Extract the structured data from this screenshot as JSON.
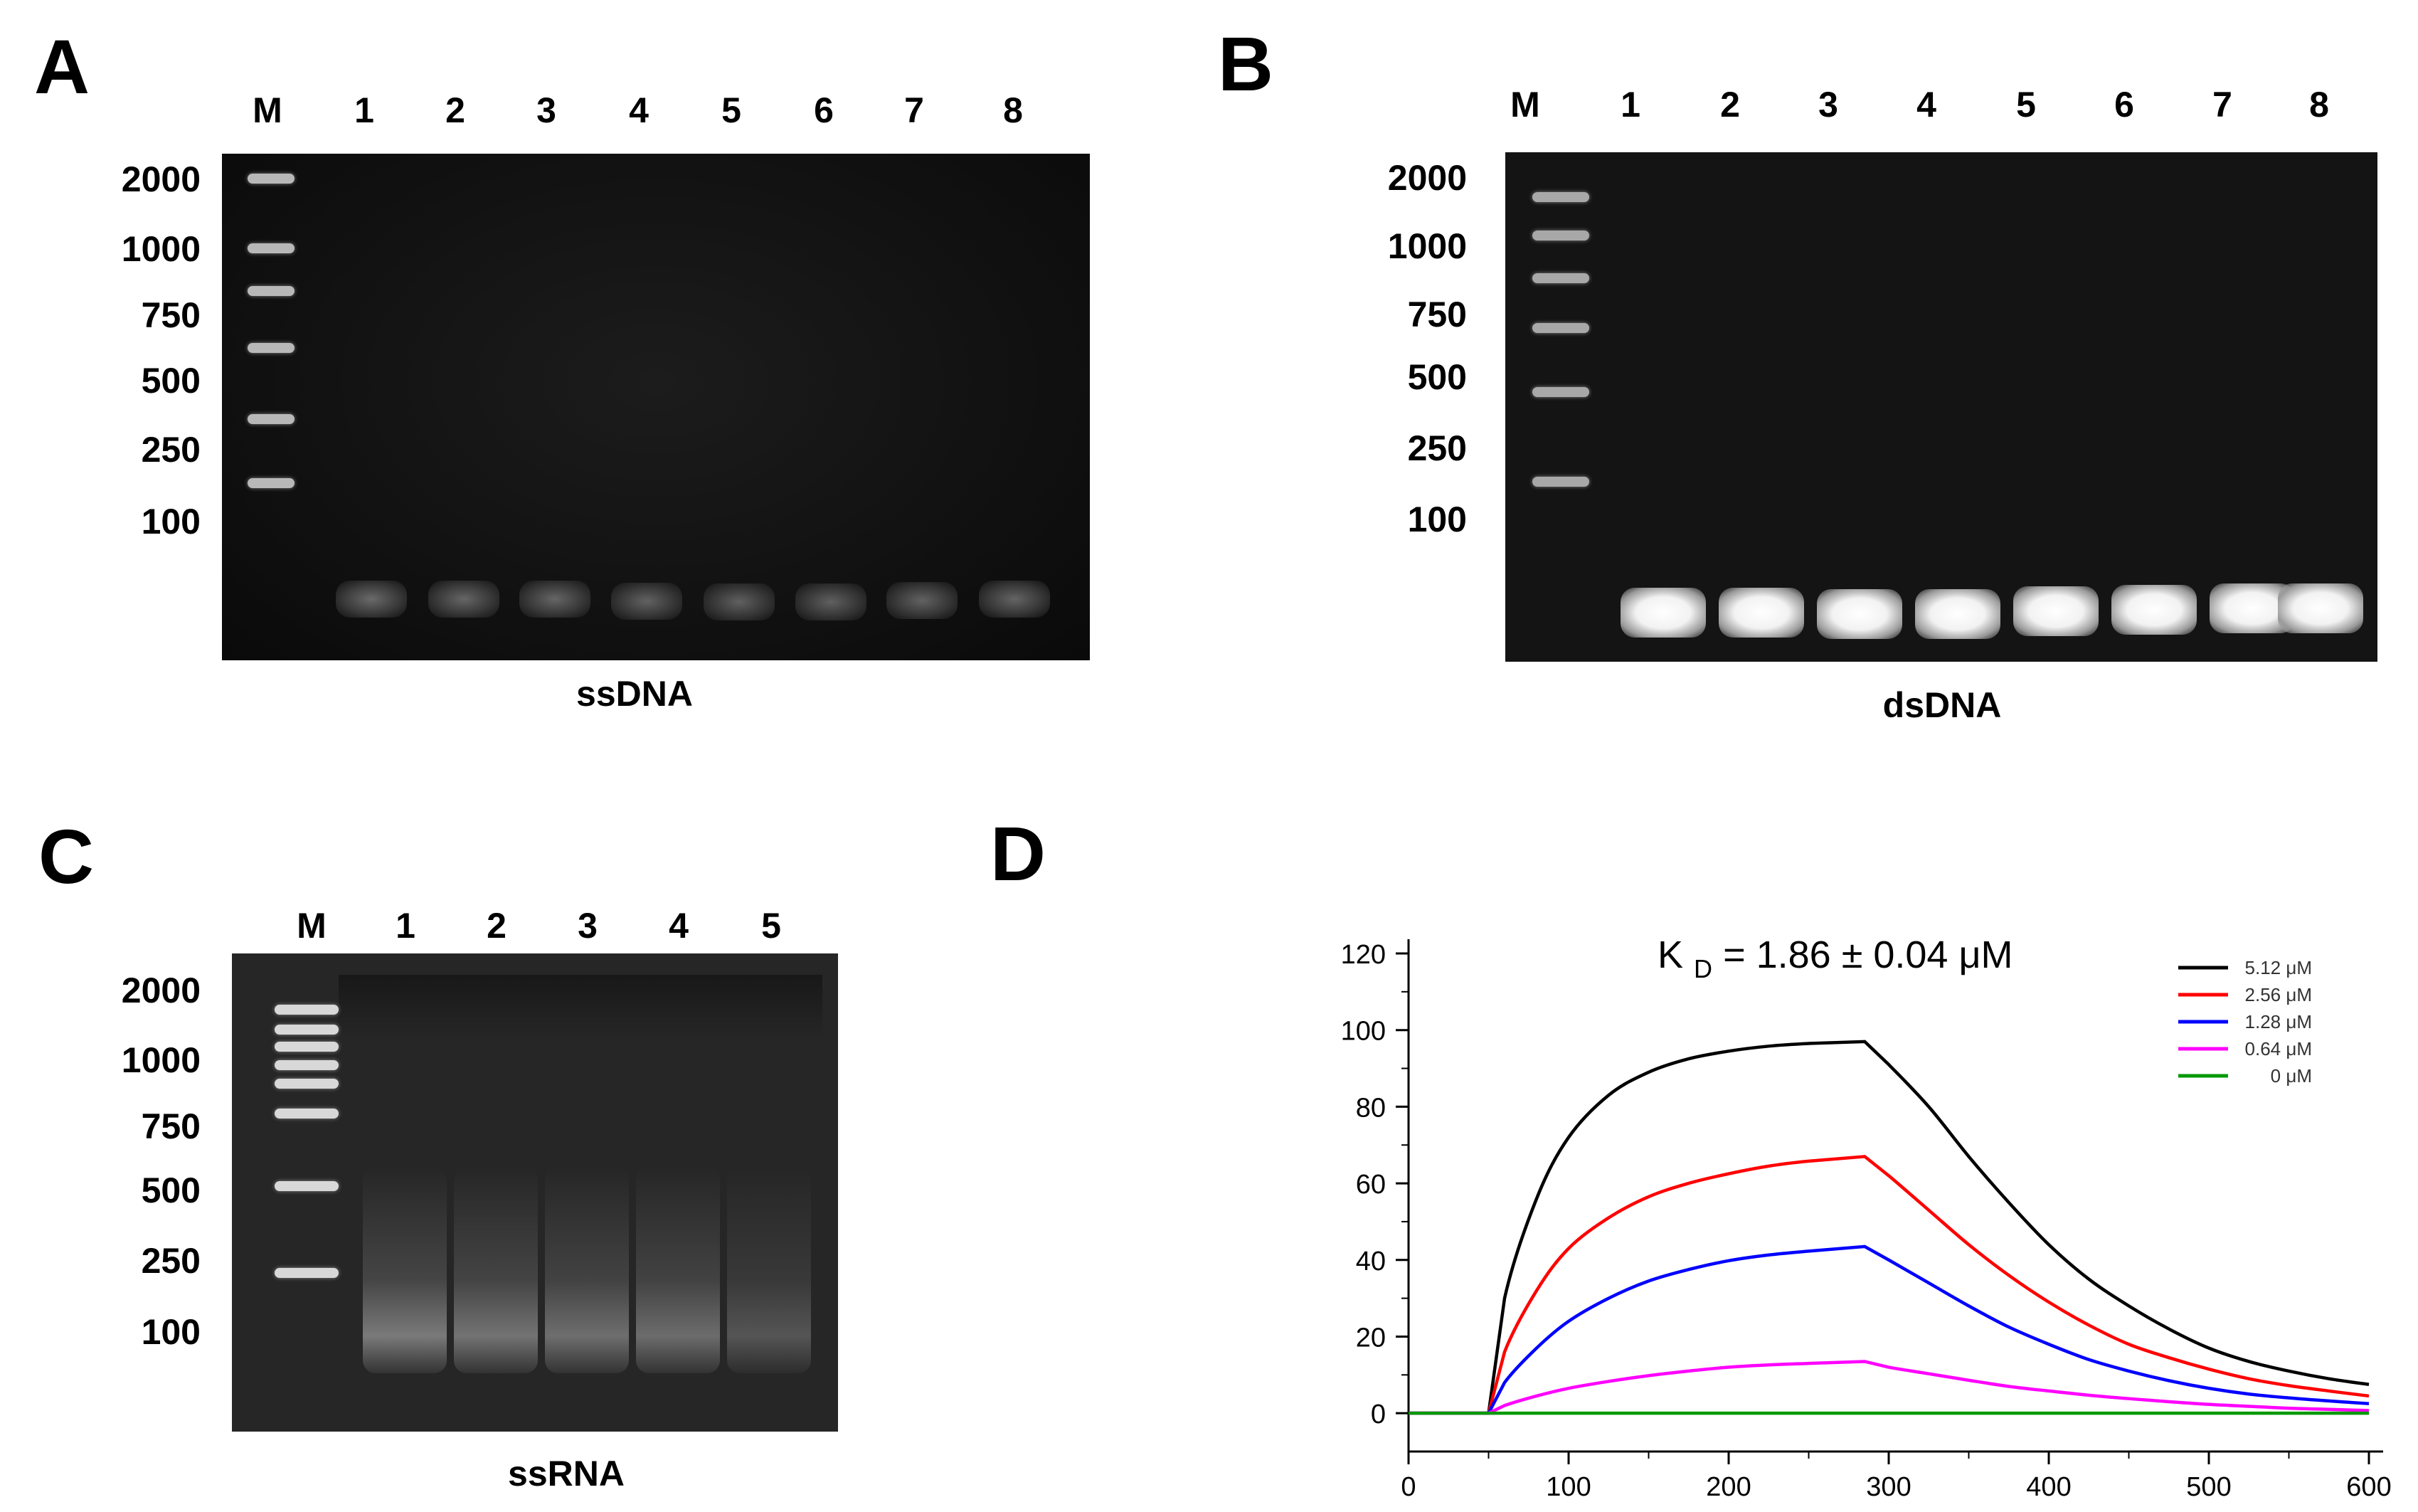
{
  "panels": {
    "A": {
      "letter": "A",
      "caption": "ssDNA",
      "lanes": [
        "M",
        "1",
        "2",
        "3",
        "4",
        "5",
        "6",
        "7",
        "8"
      ],
      "ladder": [
        "2000",
        "1000",
        "750",
        "500",
        "250",
        "100"
      ]
    },
    "B": {
      "letter": "B",
      "caption": "dsDNA",
      "lanes": [
        "M",
        "1",
        "2",
        "3",
        "4",
        "5",
        "6",
        "7",
        "8"
      ],
      "ladder": [
        "2000",
        "1000",
        "750",
        "500",
        "250",
        "100"
      ]
    },
    "C": {
      "letter": "C",
      "caption": "ssRNA",
      "lanes": [
        "M",
        "1",
        "2",
        "3",
        "4",
        "5"
      ],
      "ladder": [
        "2000",
        "1000",
        "750",
        "500",
        "250",
        "100"
      ]
    },
    "D": {
      "letter": "D"
    }
  },
  "chart_data": {
    "type": "line",
    "title": "K_D = 1.86 ± 0.04 μM",
    "annotation": {
      "main": "K",
      "sub": "D",
      "rest": " = 1.86 ± 0.04 μM"
    },
    "xlim": [
      0,
      600
    ],
    "ylim": [
      -10,
      120
    ],
    "x_ticks": [
      "0",
      "100",
      "200",
      "300",
      "400",
      "500",
      "600"
    ],
    "y_ticks": [
      "0",
      "20",
      "40",
      "60",
      "80",
      "100",
      "120"
    ],
    "x_tick_values": [
      0,
      100,
      200,
      300,
      400,
      500,
      600
    ],
    "y_tick_values": [
      0,
      20,
      40,
      60,
      80,
      100,
      120
    ],
    "legend_position": "top-right",
    "x": [
      0,
      50,
      60,
      80,
      100,
      125,
      150,
      175,
      200,
      225,
      250,
      285,
      300,
      325,
      350,
      375,
      400,
      425,
      450,
      475,
      500,
      525,
      550,
      575,
      600
    ],
    "series": [
      {
        "name": "5.12 μM",
        "color": "#000000",
        "values": [
          0,
          0,
          30,
          56,
          72,
          83,
          89,
          92.5,
          94.5,
          95.8,
          96.5,
          97,
          91,
          80,
          67,
          55,
          44,
          35,
          28,
          22,
          17,
          13.5,
          11,
          9,
          7.5
        ]
      },
      {
        "name": "2.56 μM",
        "color": "#ff0000",
        "values": [
          0,
          0,
          16,
          32,
          43,
          51,
          56.5,
          60,
          62.5,
          64.5,
          65.8,
          67,
          62,
          53,
          44,
          36,
          29,
          23,
          18,
          14.5,
          11.5,
          9,
          7.2,
          5.8,
          4.5
        ]
      },
      {
        "name": "1.28 μM",
        "color": "#0000ff",
        "values": [
          0,
          0,
          8,
          17,
          24,
          30,
          34.5,
          37.5,
          39.8,
          41.3,
          42.3,
          43.5,
          40,
          34,
          28,
          22.5,
          18,
          14,
          11,
          8.5,
          6.5,
          5,
          4,
          3.2,
          2.5
        ]
      },
      {
        "name": "0.64 μM",
        "color": "#ff00ff",
        "values": [
          0,
          0,
          2,
          4.5,
          6.5,
          8.3,
          9.8,
          11,
          12,
          12.6,
          13,
          13.5,
          12,
          10.3,
          8.6,
          7,
          5.8,
          4.7,
          3.8,
          3,
          2.3,
          1.8,
          1.3,
          1,
          0.7
        ]
      },
      {
        "name": "0 μM",
        "color": "#009900",
        "values": [
          0,
          0,
          0,
          0,
          0,
          0,
          0,
          0,
          0,
          0,
          0,
          0,
          0,
          0,
          0,
          0,
          0,
          0,
          0,
          0,
          0,
          0,
          0,
          0,
          0
        ]
      }
    ]
  }
}
